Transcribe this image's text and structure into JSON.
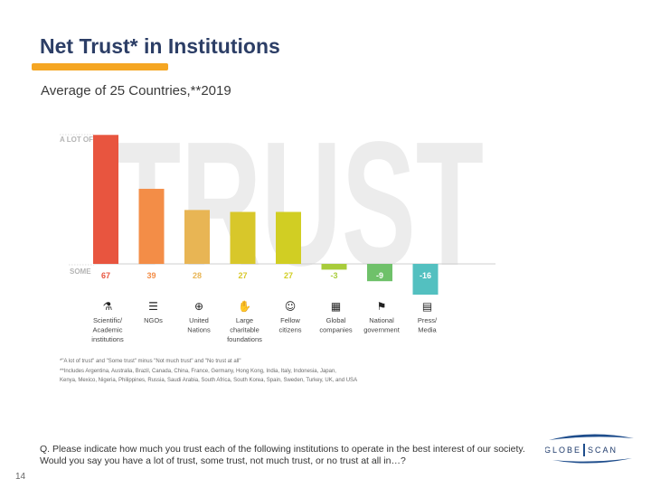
{
  "slide": {
    "title": "Net Trust* in Institutions",
    "subtitle": "Average of 25 Countries,**2019",
    "page_number": "14",
    "question": "Q. Please indicate how much you trust each of the following institutions to operate in the best interest of our society. Would you say you have a lot of trust, some trust, not much trust, or no trust at all in…?",
    "footnotes": [
      "*\"A lot of trust\" and \"Some trust\" minus \"Not much trust\" and \"No trust at all\"",
      "**Includes Argentina, Australia, Brazil, Canada, China, France, Germany, Hong Kong, India, Italy, Indonesia, Japan,",
      "Kenya, Mexico, Nigeria, Philippines, Russia, Saudi Arabia, South Africa, South Korea, Spain, Sweden, Turkey, UK, and USA"
    ],
    "logo": {
      "left": "GLOBE",
      "right": "SCAN"
    }
  },
  "chart_data": {
    "type": "bar",
    "title": "Net Trust* in Institutions",
    "subtitle": "Average of 25 Countries,**2019",
    "background_word": "TRUST",
    "axis_labels": {
      "top": "A LOT OF",
      "baseline": "SOME"
    },
    "categories": [
      "Scientific/ Academic institutions",
      "NGOs",
      "United Nations",
      "Large charitable foundations",
      "Fellow citizens",
      "Global companies",
      "National government",
      "Press/ Media"
    ],
    "category_lines": [
      [
        "Scientific/",
        "Academic",
        "institutions"
      ],
      [
        "NGOs"
      ],
      [
        "United",
        "Nations"
      ],
      [
        "Large",
        "charitable",
        "foundations"
      ],
      [
        "Fellow",
        "citizens"
      ],
      [
        "Global",
        "companies"
      ],
      [
        "National",
        "government"
      ],
      [
        "Press/",
        "Media"
      ]
    ],
    "values": [
      67,
      39,
      28,
      27,
      27,
      -3,
      -9,
      -16
    ],
    "value_labels": [
      "67",
      "39",
      "28",
      "27",
      "27",
      "-3",
      "-9",
      "-16"
    ],
    "colors": [
      "#e8553f",
      "#f38d47",
      "#e8b554",
      "#d8c72a",
      "#d1ce23",
      "#a8cc3b",
      "#6fc16a",
      "#53c0c0"
    ],
    "icons": [
      "flask-icon",
      "speech-bubble-icon",
      "globe-icon",
      "handshake-icon",
      "people-icon",
      "grid-icon",
      "flag-icon",
      "newspaper-icon"
    ],
    "icon_glyphs": [
      "⚗",
      "☰",
      "⊕",
      "✋",
      "☺",
      "▦",
      "⚑",
      "▤"
    ],
    "ylim": [
      -20,
      70
    ]
  }
}
